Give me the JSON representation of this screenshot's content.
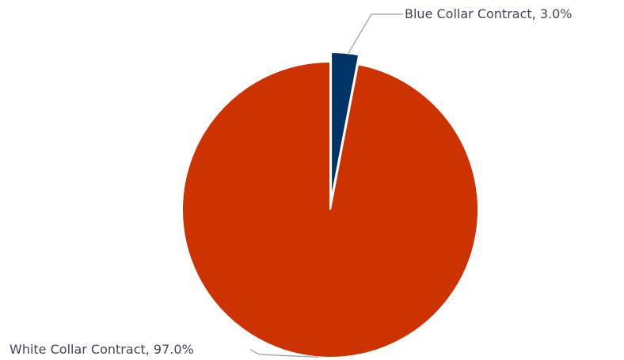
{
  "chart_data": {
    "type": "pie",
    "title": "",
    "slices": [
      {
        "label": "Blue Collar Contract",
        "value": 3.0,
        "display": "Blue Collar Contract, 3.0%",
        "color": "#003366"
      },
      {
        "label": "White Collar Contract",
        "value": 97.0,
        "display": "White Collar Contract, 97.0%",
        "color": "#cc3300"
      }
    ],
    "legend": "none",
    "labels": "outside-with-leader-lines"
  }
}
